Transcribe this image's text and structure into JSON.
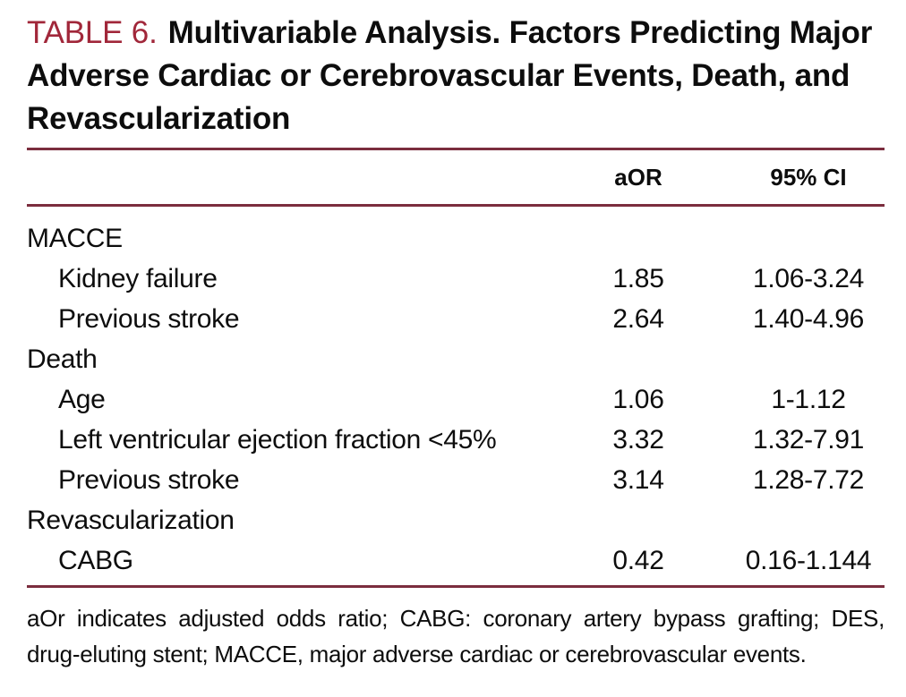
{
  "title": {
    "label": "TABLE 6.",
    "main": "Multivariable Analysis. Factors Predicting Major Adverse Cardiac or Cerebrovascular Events, Death, and Revascularization"
  },
  "colors": {
    "accent_red": "#a1273a",
    "rule": "#7b2d3e",
    "text": "#0d0d0d"
  },
  "table": {
    "header": {
      "label": "",
      "aor": "aOR",
      "ci": "95% CI"
    },
    "rows": [
      {
        "label": "MACCE",
        "indent": false,
        "aor": "",
        "ci": ""
      },
      {
        "label": "Kidney failure",
        "indent": true,
        "aor": "1.85",
        "ci": "1.06-3.24"
      },
      {
        "label": "Previous stroke",
        "indent": true,
        "aor": "2.64",
        "ci": "1.40-4.96"
      },
      {
        "label": "Death",
        "indent": false,
        "aor": "",
        "ci": ""
      },
      {
        "label": "Age",
        "indent": true,
        "aor": "1.06",
        "ci": "1-1.12"
      },
      {
        "label": "Left ventricular ejection fraction <45%",
        "indent": true,
        "aor": "3.32",
        "ci": "1.32-7.91"
      },
      {
        "label": "Previous stroke",
        "indent": true,
        "aor": "3.14",
        "ci": "1.28-7.72"
      },
      {
        "label": "Revascularization",
        "indent": false,
        "aor": "",
        "ci": ""
      },
      {
        "label": "CABG",
        "indent": true,
        "aor": "0.42",
        "ci": "0.16-1.144"
      }
    ]
  },
  "footnote": "aOr indicates adjusted odds ratio; CABG: coronary artery bypass grafting; DES, drug-eluting stent; MACCE, major adverse cardiac or cerebrovascular events."
}
